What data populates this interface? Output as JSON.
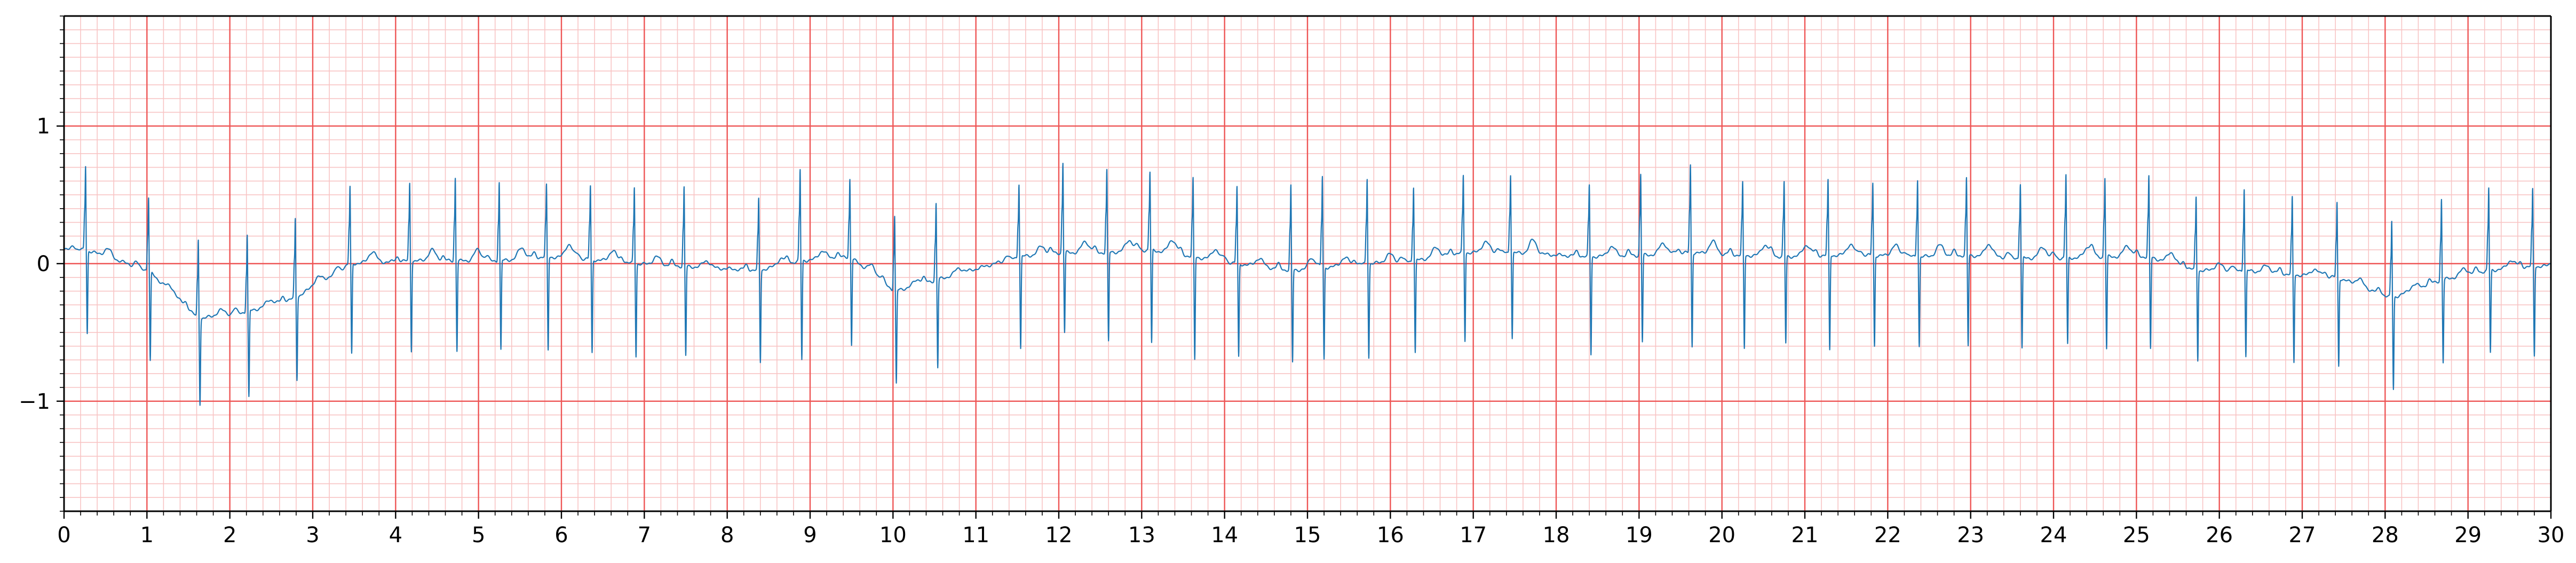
{
  "chart_data": {
    "type": "line",
    "title": "",
    "xlabel": "",
    "ylabel": "",
    "xlim": [
      0,
      30
    ],
    "ylim": [
      -1.8,
      1.8
    ],
    "grid": {
      "on": true,
      "major_x_step": 1,
      "minor_x_step": 0.2,
      "major_y_step": 1,
      "minor_y_step": 0.1,
      "major_color": "#ee5555",
      "minor_color": "#f8c4c4"
    },
    "x_tick_labels": [
      "0",
      "1",
      "2",
      "3",
      "4",
      "5",
      "6",
      "7",
      "8",
      "9",
      "10",
      "11",
      "12",
      "13",
      "14",
      "15",
      "16",
      "17",
      "18",
      "19",
      "20",
      "21",
      "22",
      "23",
      "24",
      "25",
      "26",
      "27",
      "28",
      "29",
      "30"
    ],
    "y_ticks": [
      -1,
      0,
      1
    ],
    "y_tick_labels": [
      "−1",
      "0",
      "1"
    ],
    "line_color": "#1f77b4",
    "series": [
      {
        "beats": [
          {
            "t": 0.26,
            "r": 0.87,
            "s": -0.5,
            "base": 0.1,
            "tw": 0.06
          },
          {
            "t": 1.02,
            "r": 0.62,
            "s": -0.7,
            "base": -0.05,
            "tw": 0.04
          },
          {
            "t": 1.62,
            "r": 0.32,
            "s": -1.02,
            "base": -0.4,
            "tw": 0.04
          },
          {
            "t": 2.21,
            "r": 0.35,
            "s": -0.98,
            "base": -0.35,
            "tw": 0.04
          },
          {
            "t": 2.79,
            "r": 0.47,
            "s": -0.85,
            "base": -0.25,
            "tw": 0.05
          },
          {
            "t": 3.45,
            "r": 0.7,
            "s": -0.66,
            "base": 0.0,
            "tw": 0.08
          },
          {
            "t": 4.17,
            "r": 0.73,
            "s": -0.63,
            "base": 0.02,
            "tw": 0.08
          },
          {
            "t": 4.72,
            "r": 0.78,
            "s": -0.63,
            "base": 0.02,
            "tw": 0.08
          },
          {
            "t": 5.25,
            "r": 0.74,
            "s": -0.63,
            "base": 0.02,
            "tw": 0.08
          },
          {
            "t": 5.82,
            "r": 0.7,
            "s": -0.63,
            "base": 0.05,
            "tw": 0.1
          },
          {
            "t": 6.35,
            "r": 0.7,
            "s": -0.65,
            "base": 0.03,
            "tw": 0.08
          },
          {
            "t": 6.88,
            "r": 0.7,
            "s": -0.67,
            "base": 0.0,
            "tw": 0.06
          },
          {
            "t": 7.48,
            "r": 0.7,
            "s": -0.67,
            "base": -0.02,
            "tw": 0.05
          },
          {
            "t": 8.38,
            "r": 0.6,
            "s": -0.72,
            "base": -0.05,
            "tw": 0.05
          },
          {
            "t": 8.88,
            "r": 0.85,
            "s": -0.7,
            "base": 0.02,
            "tw": 0.06
          },
          {
            "t": 9.48,
            "r": 0.76,
            "s": -0.58,
            "base": 0.05,
            "tw": 0.06
          },
          {
            "t": 10.02,
            "r": 0.48,
            "s": -0.88,
            "base": -0.2,
            "tw": 0.04
          },
          {
            "t": 10.52,
            "r": 0.58,
            "s": -0.76,
            "base": -0.12,
            "tw": 0.04
          },
          {
            "t": 11.52,
            "r": 0.72,
            "s": -0.62,
            "base": 0.05,
            "tw": 0.06
          },
          {
            "t": 12.05,
            "r": 0.9,
            "s": -0.5,
            "base": 0.08,
            "tw": 0.08
          },
          {
            "t": 12.58,
            "r": 0.83,
            "s": -0.57,
            "base": 0.08,
            "tw": 0.08
          },
          {
            "t": 13.1,
            "r": 0.81,
            "s": -0.58,
            "base": 0.1,
            "tw": 0.1
          },
          {
            "t": 13.62,
            "r": 0.76,
            "s": -0.7,
            "base": 0.05,
            "tw": 0.08
          },
          {
            "t": 14.15,
            "r": 0.7,
            "s": -0.68,
            "base": 0.0,
            "tw": 0.06
          },
          {
            "t": 14.8,
            "r": 0.72,
            "s": -0.72,
            "base": -0.05,
            "tw": 0.06
          },
          {
            "t": 15.18,
            "r": 0.8,
            "s": -0.7,
            "base": -0.03,
            "tw": 0.06
          },
          {
            "t": 15.72,
            "r": 0.78,
            "s": -0.68,
            "base": 0.0,
            "tw": 0.06
          },
          {
            "t": 16.28,
            "r": 0.7,
            "s": -0.65,
            "base": 0.02,
            "tw": 0.07
          },
          {
            "t": 16.88,
            "r": 0.78,
            "s": -0.56,
            "base": 0.08,
            "tw": 0.08
          },
          {
            "t": 17.45,
            "r": 0.8,
            "s": -0.54,
            "base": 0.08,
            "tw": 0.1
          },
          {
            "t": 18.4,
            "r": 0.7,
            "s": -0.66,
            "base": 0.05,
            "tw": 0.07
          },
          {
            "t": 19.02,
            "r": 0.8,
            "s": -0.57,
            "base": 0.06,
            "tw": 0.08
          },
          {
            "t": 19.62,
            "r": 0.88,
            "s": -0.6,
            "base": 0.08,
            "tw": 0.09
          },
          {
            "t": 20.25,
            "r": 0.72,
            "s": -0.62,
            "base": 0.06,
            "tw": 0.08
          },
          {
            "t": 20.75,
            "r": 0.73,
            "s": -0.58,
            "base": 0.05,
            "tw": 0.08
          },
          {
            "t": 21.28,
            "r": 0.74,
            "s": -0.63,
            "base": 0.06,
            "tw": 0.08
          },
          {
            "t": 21.82,
            "r": 0.72,
            "s": -0.6,
            "base": 0.06,
            "tw": 0.08
          },
          {
            "t": 22.36,
            "r": 0.76,
            "s": -0.6,
            "base": 0.05,
            "tw": 0.08
          },
          {
            "t": 22.95,
            "r": 0.76,
            "s": -0.6,
            "base": 0.06,
            "tw": 0.09
          },
          {
            "t": 23.6,
            "r": 0.72,
            "s": -0.62,
            "base": 0.04,
            "tw": 0.08
          },
          {
            "t": 24.15,
            "r": 0.8,
            "s": -0.59,
            "base": 0.04,
            "tw": 0.08
          },
          {
            "t": 24.62,
            "r": 0.77,
            "s": -0.62,
            "base": 0.05,
            "tw": 0.08
          },
          {
            "t": 25.15,
            "r": 0.78,
            "s": -0.62,
            "base": 0.05,
            "tw": 0.08
          },
          {
            "t": 25.72,
            "r": 0.62,
            "s": -0.7,
            "base": -0.05,
            "tw": 0.05
          },
          {
            "t": 26.3,
            "r": 0.7,
            "s": -0.68,
            "base": -0.05,
            "tw": 0.05
          },
          {
            "t": 26.88,
            "r": 0.62,
            "s": -0.72,
            "base": -0.08,
            "tw": 0.05
          },
          {
            "t": 27.42,
            "r": 0.58,
            "s": -0.74,
            "base": -0.1,
            "tw": 0.05
          },
          {
            "t": 28.08,
            "r": 0.45,
            "s": -0.92,
            "base": -0.25,
            "tw": 0.04
          },
          {
            "t": 28.68,
            "r": 0.62,
            "s": -0.72,
            "base": -0.12,
            "tw": 0.05
          },
          {
            "t": 29.25,
            "r": 0.7,
            "s": -0.65,
            "base": -0.05,
            "tw": 0.06
          },
          {
            "t": 29.78,
            "r": 0.68,
            "s": -0.67,
            "base": -0.02,
            "tw": 0.05
          }
        ]
      }
    ]
  }
}
